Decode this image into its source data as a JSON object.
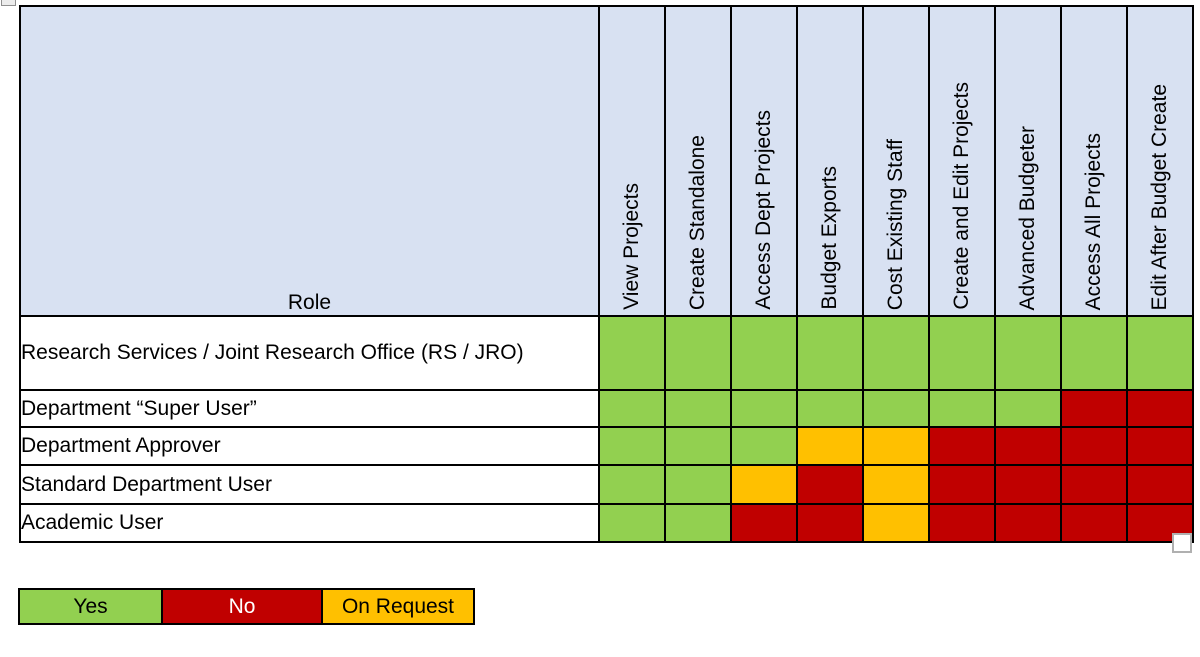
{
  "table": {
    "role_header": "Role",
    "columns": [
      "View Projects",
      "Create Standalone",
      "Access Dept Projects",
      "Budget Exports",
      "Cost Existing Staff",
      "Create and Edit Projects",
      "Advanced Budgeter",
      "Access All Projects",
      "Edit After Budget Create"
    ],
    "rows": [
      {
        "role": "Research Services / Joint Research Office (RS / JRO)",
        "permissions": [
          "yes",
          "yes",
          "yes",
          "yes",
          "yes",
          "yes",
          "yes",
          "yes",
          "yes"
        ]
      },
      {
        "role": "Department “Super User”",
        "permissions": [
          "yes",
          "yes",
          "yes",
          "yes",
          "yes",
          "yes",
          "yes",
          "no",
          "no"
        ]
      },
      {
        "role": "Department Approver",
        "permissions": [
          "yes",
          "yes",
          "yes",
          "on_request",
          "on_request",
          "no",
          "no",
          "no",
          "no"
        ]
      },
      {
        "role": "Standard Department User",
        "permissions": [
          "yes",
          "yes",
          "on_request",
          "no",
          "on_request",
          "no",
          "no",
          "no",
          "no"
        ]
      },
      {
        "role": "Academic User",
        "permissions": [
          "yes",
          "yes",
          "no",
          "no",
          "on_request",
          "no",
          "no",
          "no",
          "no"
        ]
      }
    ]
  },
  "legend": {
    "items": [
      {
        "label": "Yes",
        "key": "yes"
      },
      {
        "label": "No",
        "key": "no"
      },
      {
        "label": "On Request",
        "key": "on_request"
      }
    ]
  },
  "colors": {
    "yes": "#92d050",
    "no": "#c00000",
    "on_request": "#ffc000",
    "header_bg": "#d8e1f2",
    "border": "#000000"
  },
  "icons": {
    "table_move_handle": "table-move-handle-icon",
    "anchor_box": "empty-selection-box-icon"
  }
}
